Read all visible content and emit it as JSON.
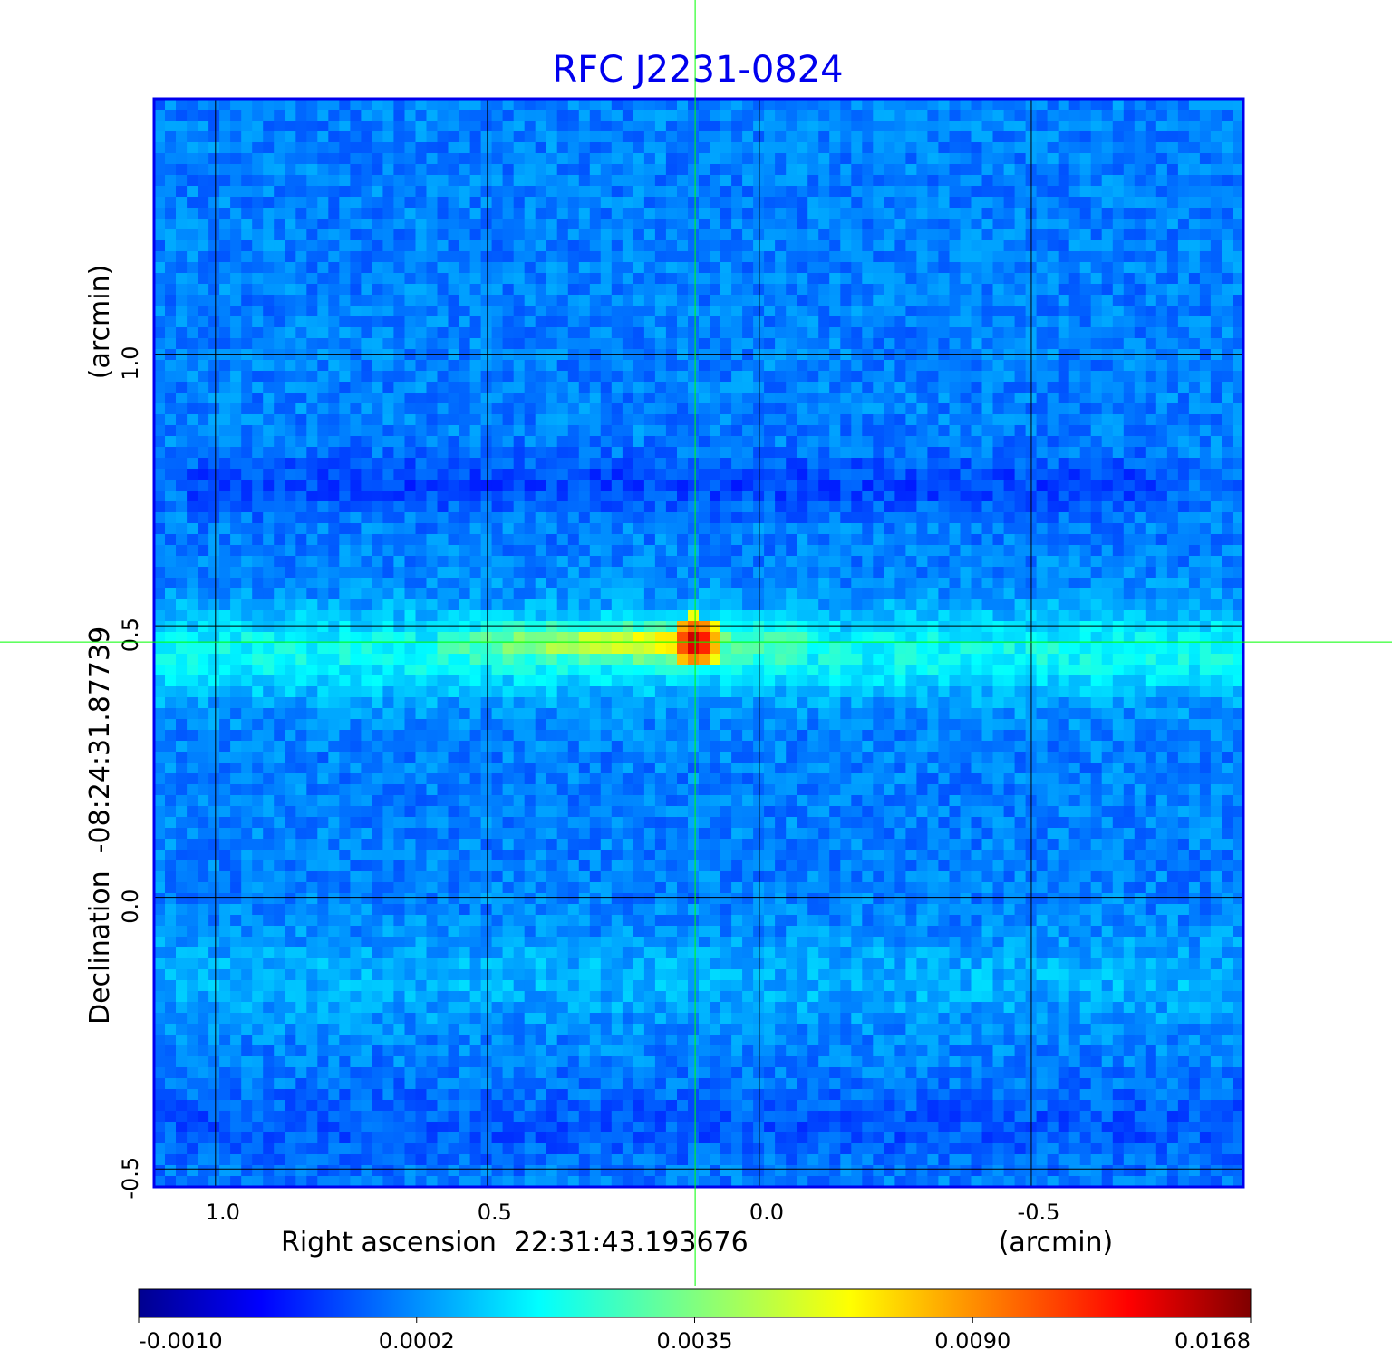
{
  "chart_data": {
    "type": "heatmap",
    "title": "RFC J2231-0824",
    "xlabel": "Right ascension  22:31:43.193676",
    "xunit": "(arcmin)",
    "ylabel": "Declination  -08:24:31.87739",
    "yunit": "(arcmin)",
    "xticks": [
      {
        "value": 1.0,
        "label": "1.0"
      },
      {
        "value": 0.5,
        "label": "0.5"
      },
      {
        "value": 0.0,
        "label": "0.0"
      },
      {
        "value": -0.5,
        "label": "-0.5"
      }
    ],
    "yticks": [
      {
        "value": 1.0,
        "label": "1.0"
      },
      {
        "value": 0.5,
        "label": "0.5"
      },
      {
        "value": 0.0,
        "label": "0.0"
      },
      {
        "value": -0.5,
        "label": "-0.5"
      }
    ],
    "xlim": [
      1.113,
      -0.89
    ],
    "ylim": [
      -0.533,
      1.47
    ],
    "grid": true,
    "crosshair": {
      "x": 0.118,
      "y": 0.47,
      "color": "#00ff00"
    },
    "colormap": "jet",
    "colorbar": {
      "placement": "bottom",
      "ticks": [
        "-0.0010",
        "0.0002",
        "0.0035",
        "0.0090",
        "0.0168"
      ],
      "min": -0.001,
      "max": 0.0168
    },
    "features": {
      "background_level": 0.0002,
      "band_dec": 0.47,
      "peak": {
        "x": 0.118,
        "y": 0.47,
        "value": 0.0168
      }
    },
    "title_color": "#0000ee",
    "frame_color": "#0000ee"
  }
}
